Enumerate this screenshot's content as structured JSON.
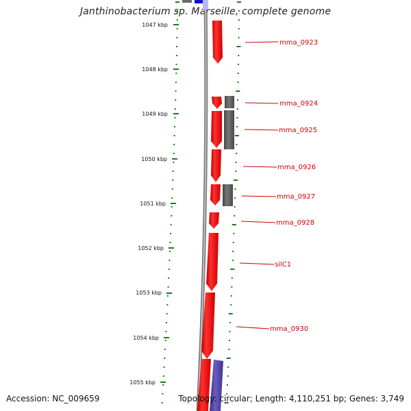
{
  "title": "Janthinobacterium sp. Marseille, complete genome",
  "accession_text": "Accession: NC_009659",
  "stats_text": "Topology: circular; Length: 4,110,251 bp; Genes: 3,749",
  "scale_labels": [
    "1047 kbp",
    "1048 kbp",
    "1049 kbp",
    "1050 kbp",
    "1051 kbp",
    "1052 kbp",
    "1053 kbp",
    "1054 kbp",
    "1055 kbp"
  ],
  "gene_labels": [
    "mma_0923",
    "mma_0924",
    "mma_0925",
    "mma_0926",
    "mma_0927",
    "mma_0928",
    "silC1",
    "mma_0930"
  ],
  "colors": {
    "gene_forward": "#ff0000",
    "gene_grey": "#5a5a5a",
    "gene_blue": "#4c3fa0",
    "backbone": "#7a7a7a",
    "scale_dots": "#1a7a1a",
    "label_text": "#cc0000"
  }
}
